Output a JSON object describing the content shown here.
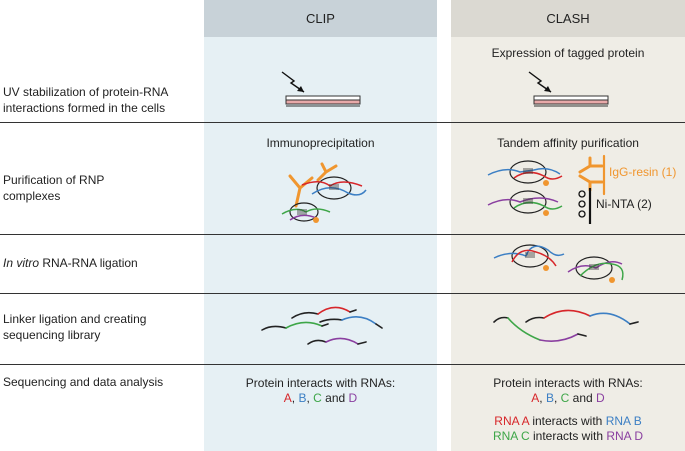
{
  "columns": {
    "clip": {
      "title": "CLIP",
      "bg": "#e6f0f4",
      "header_bg": "#c8d2d8"
    },
    "clash": {
      "title": "CLASH",
      "bg": "#efede6",
      "header_bg": "#dbd9d2"
    }
  },
  "rows": [
    {
      "label_lines": [
        "UV stabilization of protein-RNA",
        "interactions formed in the cells"
      ]
    },
    {
      "label_lines": [
        "Purification of RNP",
        "complexes"
      ]
    },
    {
      "label_italic": "In vitro",
      "label_rest": " RNA-RNA ligation"
    },
    {
      "label_lines": [
        "Linker ligation and creating",
        "sequencing library"
      ]
    },
    {
      "label_lines": [
        "Sequencing and data analysis"
      ]
    }
  ],
  "clip_texts": {
    "immunoprecipitation": "Immunoprecipitation",
    "result_line1": "Protein interacts with RNAs:",
    "rna_a": "A",
    "rna_b": "B",
    "rna_c": "C",
    "and_word": "and",
    "rna_d": "D",
    "sep": ", "
  },
  "clash_texts": {
    "expression": "Expression of tagged protein",
    "tandem": "Tandem affinity purification",
    "igg_resin": "IgG-resin (1)",
    "ni_nta": "Ni-NTA (2)",
    "result_line1": "Protein interacts with RNAs:",
    "rna_a": "A",
    "rna_b": "B",
    "rna_c": "C",
    "and_word": "and",
    "rna_d": "D",
    "sep": ", ",
    "pair1_a": "RNA A",
    "pair1_mid": " interacts with ",
    "pair1_b": "RNA B",
    "pair2_c": "RNA C",
    "pair2_mid": " interacts with ",
    "pair2_d": "RNA D"
  },
  "colors": {
    "rna_red": "#d7262a",
    "rna_blue": "#3c7fc4",
    "rna_green": "#3ea648",
    "rna_purple": "#8a3fa0",
    "antibody_orange": "#f0962f",
    "dish_pink": "#e8a9a9"
  },
  "icons": [
    "uv-arrow-icon",
    "petri-dish-icon",
    "antibody-icon",
    "rnp-complex-icon",
    "ni-nta-bead-icon"
  ]
}
